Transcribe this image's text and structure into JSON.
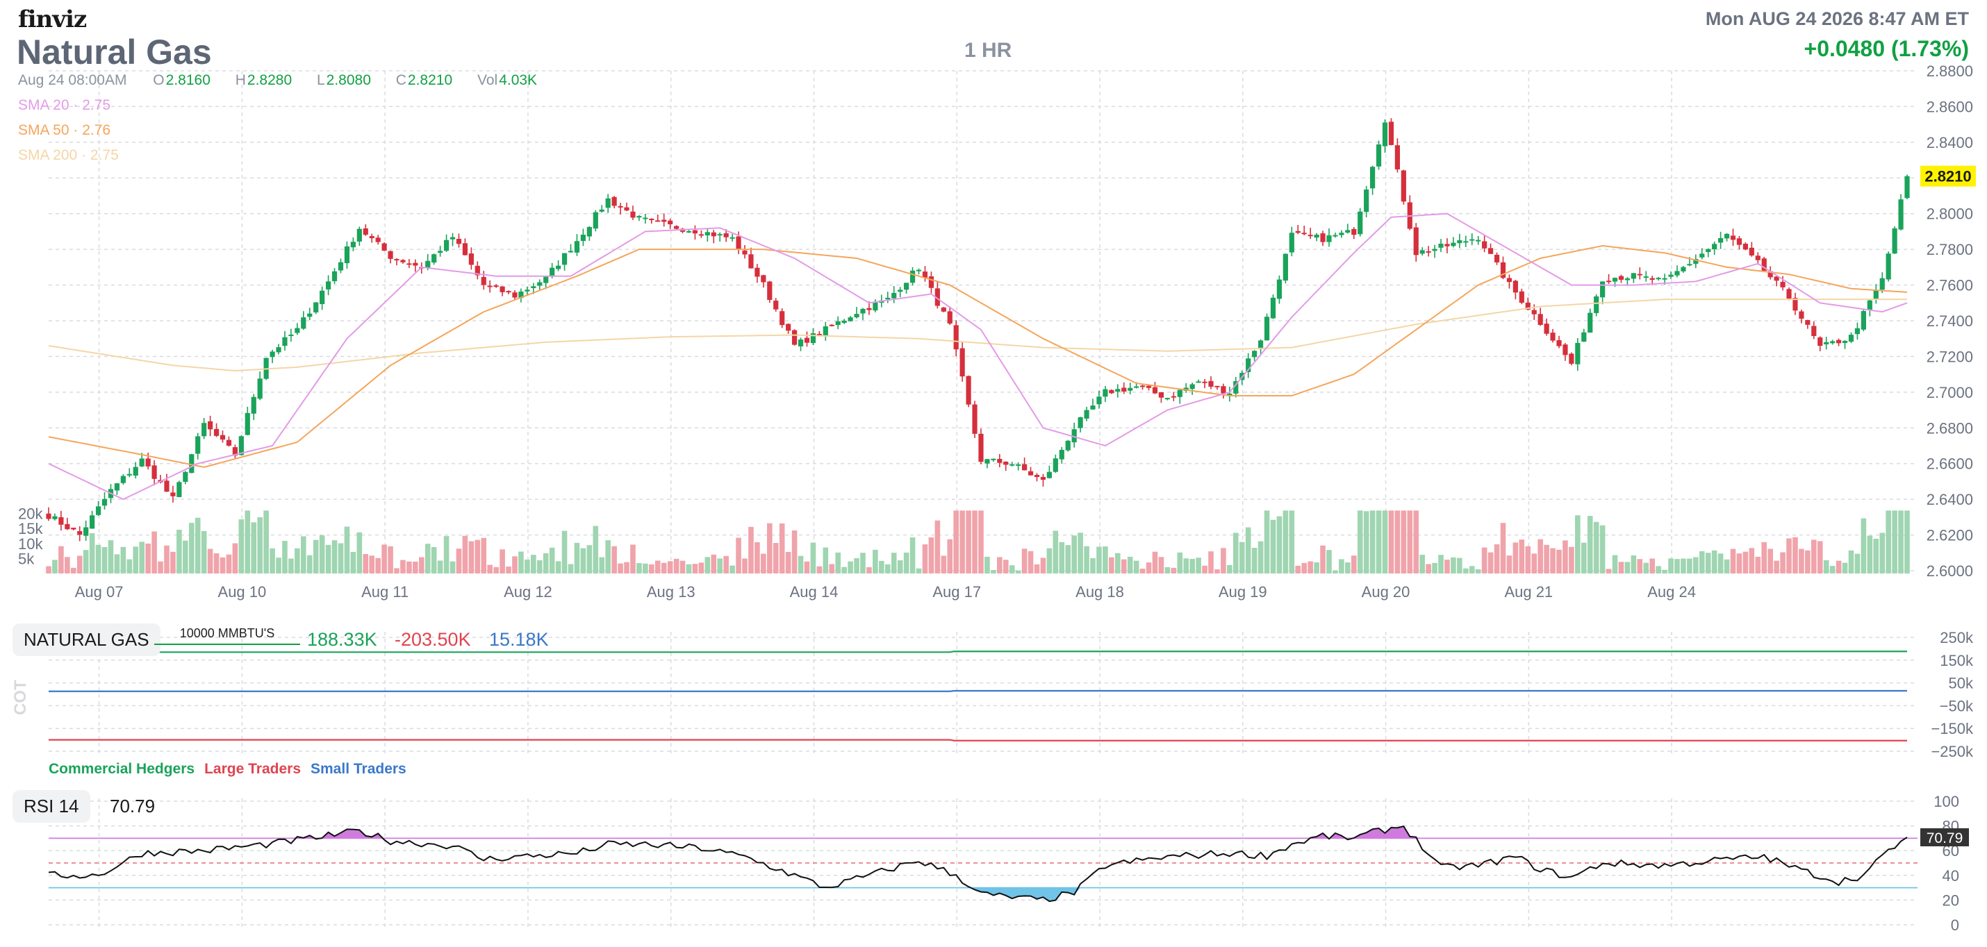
{
  "header": {
    "logo": "finviz",
    "ticker": "Natural Gas",
    "timeframe": "1 HR",
    "datetime": "Mon AUG 24 2026 8:47 AM ET",
    "change": "+0.0480 (1.73%)"
  },
  "ohlc": {
    "date": "Aug 24 08:00AM",
    "open_label": "O",
    "open": "2.8160",
    "high_label": "H",
    "high": "2.8280",
    "low_label": "L",
    "low": "2.8080",
    "close_label": "C",
    "close": "2.8210",
    "vol_label": "Vol",
    "vol": "4.03K"
  },
  "sma_legend": [
    {
      "label": "SMA 20",
      "value": "2.75",
      "color": "#e39be6"
    },
    {
      "label": "SMA 50",
      "value": "2.76",
      "color": "#f5a55a"
    },
    {
      "label": "SMA 200",
      "value": "2.75",
      "color": "#f4d6a6"
    }
  ],
  "colors": {
    "up": "#1aa35a",
    "down": "#d62f3c",
    "vol_up": "#9fd5b1",
    "vol_down": "#f0a3aa",
    "grid": "#d9dbe0",
    "rsi_over": "#cf7bde",
    "rsi_under": "#6fc4e7",
    "commercial": "#1aa35a",
    "large": "#e04350",
    "small": "#3a78c9"
  },
  "cot": {
    "title": "NATURAL GAS",
    "unit": "10000 MMBTU'S",
    "label": "COT",
    "commercial_value": "188.33K",
    "large_value": "-203.50K",
    "small_value": "15.18K",
    "legend": {
      "commercial": "Commercial Hedgers",
      "large": "Large Traders",
      "small": "Small Traders"
    },
    "yticks": [
      "250k",
      "150k",
      "50k",
      "−50k",
      "−150k",
      "−250k"
    ]
  },
  "rsi": {
    "title": "RSI 14",
    "value": "70.79",
    "yticks": [
      "100",
      "80",
      "60",
      "40",
      "20",
      "0"
    ]
  },
  "chart_data": {
    "type": "candlestick",
    "price_ticks": [
      "2.8800",
      "2.8600",
      "2.8400",
      "2.8200",
      "2.8000",
      "2.7800",
      "2.7600",
      "2.7400",
      "2.7200",
      "2.7000",
      "2.6800",
      "2.6600",
      "2.6400",
      "2.6200",
      "2.6000"
    ],
    "ylim": [
      2.6,
      2.88
    ],
    "last_price": "2.8210",
    "volume_ticks": [
      "20k",
      "15k",
      "10k",
      "5k"
    ],
    "xlabels": [
      "Aug 07",
      "Aug 10",
      "Aug 11",
      "Aug 12",
      "Aug 13",
      "Aug 14",
      "Aug 17",
      "Aug 18",
      "Aug 19",
      "Aug 20",
      "Aug 21",
      "Aug 24"
    ],
    "anchors": [
      [
        0,
        2.631
      ],
      [
        5,
        2.62
      ],
      [
        10,
        2.645
      ],
      [
        15,
        2.662
      ],
      [
        20,
        2.64
      ],
      [
        25,
        2.682
      ],
      [
        30,
        2.665
      ],
      [
        35,
        2.72
      ],
      [
        40,
        2.735
      ],
      [
        45,
        2.762
      ],
      [
        50,
        2.792
      ],
      [
        55,
        2.776
      ],
      [
        60,
        2.77
      ],
      [
        65,
        2.787
      ],
      [
        70,
        2.76
      ],
      [
        75,
        2.754
      ],
      [
        80,
        2.764
      ],
      [
        85,
        2.785
      ],
      [
        90,
        2.808
      ],
      [
        95,
        2.797
      ],
      [
        100,
        2.793
      ],
      [
        105,
        2.79
      ],
      [
        110,
        2.786
      ],
      [
        115,
        2.76
      ],
      [
        120,
        2.726
      ],
      [
        125,
        2.735
      ],
      [
        130,
        2.745
      ],
      [
        135,
        2.752
      ],
      [
        140,
        2.77
      ],
      [
        145,
        2.737
      ],
      [
        150,
        2.662
      ],
      [
        155,
        2.66
      ],
      [
        160,
        2.65
      ],
      [
        165,
        2.68
      ],
      [
        170,
        2.7
      ],
      [
        175,
        2.703
      ],
      [
        180,
        2.697
      ],
      [
        185,
        2.706
      ],
      [
        190,
        2.7
      ],
      [
        195,
        2.73
      ],
      [
        200,
        2.788
      ],
      [
        205,
        2.786
      ],
      [
        210,
        2.79
      ],
      [
        215,
        2.853
      ],
      [
        220,
        2.778
      ],
      [
        225,
        2.782
      ],
      [
        230,
        2.787
      ],
      [
        235,
        2.76
      ],
      [
        240,
        2.739
      ],
      [
        245,
        2.716
      ],
      [
        250,
        2.764
      ],
      [
        255,
        2.765
      ],
      [
        260,
        2.762
      ],
      [
        265,
        2.775
      ],
      [
        270,
        2.788
      ],
      [
        275,
        2.772
      ],
      [
        280,
        2.753
      ],
      [
        285,
        2.725
      ],
      [
        290,
        2.731
      ],
      [
        295,
        2.763
      ],
      [
        299,
        2.821
      ]
    ],
    "sma20_anchors": [
      [
        0,
        2.66
      ],
      [
        12,
        2.64
      ],
      [
        24,
        2.66
      ],
      [
        36,
        2.67
      ],
      [
        48,
        2.73
      ],
      [
        60,
        2.77
      ],
      [
        72,
        2.765
      ],
      [
        84,
        2.765
      ],
      [
        96,
        2.79
      ],
      [
        108,
        2.792
      ],
      [
        120,
        2.775
      ],
      [
        132,
        2.75
      ],
      [
        142,
        2.755
      ],
      [
        150,
        2.735
      ],
      [
        160,
        2.68
      ],
      [
        170,
        2.67
      ],
      [
        180,
        2.69
      ],
      [
        190,
        2.7
      ],
      [
        200,
        2.742
      ],
      [
        210,
        2.778
      ],
      [
        216,
        2.798
      ],
      [
        225,
        2.8
      ],
      [
        235,
        2.78
      ],
      [
        245,
        2.76
      ],
      [
        255,
        2.76
      ],
      [
        265,
        2.762
      ],
      [
        275,
        2.772
      ],
      [
        285,
        2.75
      ],
      [
        295,
        2.745
      ],
      [
        299,
        2.75
      ]
    ],
    "sma50_anchors": [
      [
        0,
        2.675
      ],
      [
        15,
        2.665
      ],
      [
        25,
        2.658
      ],
      [
        40,
        2.672
      ],
      [
        55,
        2.715
      ],
      [
        70,
        2.745
      ],
      [
        85,
        2.765
      ],
      [
        95,
        2.78
      ],
      [
        115,
        2.78
      ],
      [
        130,
        2.775
      ],
      [
        145,
        2.76
      ],
      [
        160,
        2.73
      ],
      [
        175,
        2.705
      ],
      [
        190,
        2.698
      ],
      [
        200,
        2.698
      ],
      [
        210,
        2.71
      ],
      [
        220,
        2.735
      ],
      [
        230,
        2.76
      ],
      [
        240,
        2.775
      ],
      [
        250,
        2.782
      ],
      [
        260,
        2.778
      ],
      [
        270,
        2.77
      ],
      [
        280,
        2.766
      ],
      [
        290,
        2.758
      ],
      [
        299,
        2.756
      ]
    ],
    "sma200_anchors": [
      [
        0,
        2.726
      ],
      [
        20,
        2.715
      ],
      [
        30,
        2.712
      ],
      [
        40,
        2.714
      ],
      [
        60,
        2.722
      ],
      [
        80,
        2.728
      ],
      [
        100,
        2.731
      ],
      [
        120,
        2.732
      ],
      [
        140,
        2.73
      ],
      [
        160,
        2.725
      ],
      [
        180,
        2.723
      ],
      [
        200,
        2.725
      ],
      [
        220,
        2.738
      ],
      [
        240,
        2.748
      ],
      [
        260,
        2.752
      ],
      [
        280,
        2.752
      ],
      [
        299,
        2.752
      ]
    ],
    "rsi_anchors": [
      [
        0,
        40
      ],
      [
        8,
        40
      ],
      [
        15,
        58
      ],
      [
        25,
        60
      ],
      [
        35,
        65
      ],
      [
        45,
        72
      ],
      [
        50,
        76
      ],
      [
        55,
        68
      ],
      [
        65,
        64
      ],
      [
        70,
        53
      ],
      [
        75,
        55
      ],
      [
        85,
        58
      ],
      [
        90,
        65
      ],
      [
        96,
        65
      ],
      [
        105,
        62
      ],
      [
        112,
        55
      ],
      [
        120,
        40
      ],
      [
        125,
        30
      ],
      [
        132,
        40
      ],
      [
        140,
        52
      ],
      [
        146,
        40
      ],
      [
        150,
        25
      ],
      [
        155,
        22
      ],
      [
        160,
        20
      ],
      [
        165,
        26
      ],
      [
        170,
        48
      ],
      [
        180,
        55
      ],
      [
        190,
        58
      ],
      [
        196,
        56
      ],
      [
        200,
        65
      ],
      [
        205,
        72
      ],
      [
        210,
        70
      ],
      [
        214,
        76
      ],
      [
        218,
        80
      ],
      [
        224,
        46
      ],
      [
        230,
        48
      ],
      [
        236,
        55
      ],
      [
        240,
        45
      ],
      [
        245,
        38
      ],
      [
        250,
        50
      ],
      [
        260,
        48
      ],
      [
        270,
        53
      ],
      [
        276,
        55
      ],
      [
        282,
        44
      ],
      [
        288,
        35
      ],
      [
        292,
        40
      ],
      [
        296,
        60
      ],
      [
        299,
        70.79
      ]
    ],
    "cot_series": [
      {
        "name": "Commercial Hedgers",
        "values_k": [
          185,
          188.33
        ]
      },
      {
        "name": "Large Traders",
        "values_k": [
          -200,
          -203.5
        ]
      },
      {
        "name": "Small Traders",
        "values_k": [
          13,
          15.18
        ]
      }
    ]
  }
}
